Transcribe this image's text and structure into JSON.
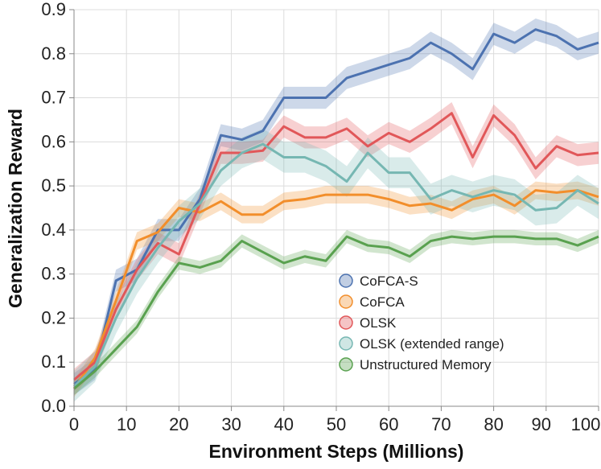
{
  "chart_data": {
    "type": "line",
    "title": "",
    "xlabel": "Environment Steps (Millions)",
    "ylabel": "Generalization Reward",
    "xlim": [
      0,
      100
    ],
    "ylim": [
      0,
      0.9
    ],
    "grid": true,
    "legend_position": "lower-right",
    "x_ticks": [
      0,
      10,
      20,
      30,
      40,
      50,
      60,
      70,
      80,
      90,
      100
    ],
    "x_tick_labels": [
      "0",
      "10",
      "20",
      "30",
      "40",
      "50",
      "60",
      "70",
      "80",
      "90",
      "100"
    ],
    "y_ticks": [
      0,
      0.1,
      0.2,
      0.3,
      0.4,
      0.5,
      0.6,
      0.7,
      0.8,
      0.9
    ],
    "y_tick_labels": [
      "0.0",
      "0.1",
      "0.2",
      "0.3",
      "0.4",
      "0.5",
      "0.6",
      "0.7",
      "0.8",
      "0.9"
    ],
    "series": [
      {
        "name": "CoFCA-S",
        "color": "#4c72b0",
        "x": [
          0,
          4,
          8,
          12,
          16,
          20,
          24,
          28,
          32,
          36,
          40,
          44,
          48,
          52,
          56,
          60,
          64,
          68,
          72,
          76,
          80,
          84,
          88,
          92,
          96,
          100
        ],
        "values": [
          0.05,
          0.085,
          0.285,
          0.31,
          0.4,
          0.4,
          0.47,
          0.615,
          0.605,
          0.625,
          0.7,
          0.7,
          0.7,
          0.745,
          0.76,
          0.775,
          0.79,
          0.825,
          0.8,
          0.765,
          0.845,
          0.825,
          0.855,
          0.84,
          0.81,
          0.825
        ],
        "band": 0.025
      },
      {
        "name": "CoFCA",
        "color": "#f28e2b",
        "x": [
          0,
          4,
          8,
          12,
          16,
          20,
          24,
          28,
          32,
          36,
          40,
          44,
          48,
          52,
          56,
          60,
          64,
          68,
          72,
          76,
          80,
          84,
          88,
          92,
          96,
          100
        ],
        "values": [
          0.04,
          0.11,
          0.24,
          0.375,
          0.395,
          0.45,
          0.44,
          0.465,
          0.435,
          0.435,
          0.465,
          0.47,
          0.48,
          0.48,
          0.48,
          0.47,
          0.455,
          0.46,
          0.445,
          0.47,
          0.48,
          0.455,
          0.49,
          0.485,
          0.49,
          0.475
        ],
        "band": 0.02
      },
      {
        "name": "OLSK",
        "color": "#e15759",
        "x": [
          0,
          4,
          8,
          12,
          16,
          20,
          24,
          28,
          32,
          36,
          40,
          44,
          48,
          52,
          56,
          60,
          64,
          68,
          72,
          76,
          80,
          84,
          88,
          92,
          96,
          100
        ],
        "values": [
          0.06,
          0.1,
          0.22,
          0.31,
          0.37,
          0.345,
          0.46,
          0.575,
          0.575,
          0.58,
          0.635,
          0.61,
          0.61,
          0.63,
          0.59,
          0.62,
          0.6,
          0.63,
          0.665,
          0.565,
          0.66,
          0.615,
          0.54,
          0.59,
          0.57,
          0.575
        ],
        "band": 0.025
      },
      {
        "name": "OLSK (extended range)",
        "color": "#76b7b2",
        "x": [
          0,
          4,
          8,
          12,
          16,
          20,
          24,
          28,
          32,
          36,
          40,
          44,
          48,
          52,
          56,
          60,
          64,
          68,
          72,
          76,
          80,
          84,
          88,
          92,
          96,
          100
        ],
        "values": [
          0.045,
          0.09,
          0.2,
          0.29,
          0.36,
          0.42,
          0.46,
          0.535,
          0.575,
          0.595,
          0.565,
          0.565,
          0.545,
          0.51,
          0.575,
          0.53,
          0.53,
          0.47,
          0.49,
          0.475,
          0.49,
          0.48,
          0.445,
          0.45,
          0.49,
          0.46
        ],
        "band": 0.035
      },
      {
        "name": "Unstructured Memory",
        "color": "#59a14f",
        "x": [
          0,
          4,
          8,
          12,
          16,
          20,
          24,
          28,
          32,
          36,
          40,
          44,
          48,
          52,
          56,
          60,
          64,
          68,
          72,
          76,
          80,
          84,
          88,
          92,
          96,
          100
        ],
        "values": [
          0.04,
          0.08,
          0.13,
          0.18,
          0.26,
          0.325,
          0.315,
          0.33,
          0.375,
          0.35,
          0.325,
          0.34,
          0.33,
          0.385,
          0.365,
          0.36,
          0.34,
          0.375,
          0.385,
          0.38,
          0.385,
          0.385,
          0.38,
          0.38,
          0.365,
          0.385
        ],
        "band": 0.015
      }
    ]
  }
}
